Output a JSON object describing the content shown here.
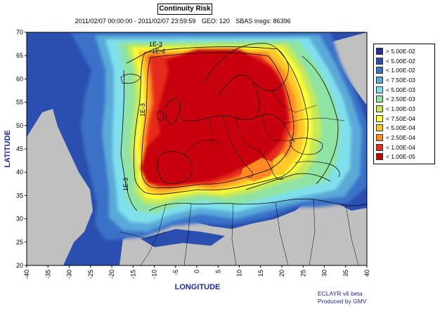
{
  "title": "Continuity Risk",
  "subtitle": {
    "period": "2011/02/07 00:00:00 - 2011/02/07 23:59:59",
    "geo": "GEO: 120",
    "msgs": "SBAS msgs: 86396"
  },
  "axes": {
    "x_title": "LONGITUDE",
    "y_title": "LATITUDE",
    "x_ticks": [
      "-40",
      "-35",
      "-30",
      "-25",
      "-20",
      "-15",
      "-10",
      "-5",
      "0",
      "5",
      "10",
      "15",
      "20",
      "25",
      "30",
      "35",
      "40"
    ],
    "y_ticks": [
      "20",
      "25",
      "30",
      "35",
      "40",
      "45",
      "50",
      "55",
      "60",
      "65",
      "70"
    ],
    "lon_range": [
      -40,
      40
    ],
    "lat_range": [
      20,
      70
    ]
  },
  "contour_labels": [
    "1E-3",
    "1E-4",
    "1E-3",
    "1E-3"
  ],
  "legend": [
    {
      "label": "> 5.00E-02",
      "color": "#1f2f9a"
    },
    {
      "label": "< 5.00E-02",
      "color": "#2a4fb0"
    },
    {
      "label": "< 1.00E-02",
      "color": "#3a72c8"
    },
    {
      "label": "< 7.50E-03",
      "color": "#5aaad8"
    },
    {
      "label": "< 5.00E-03",
      "color": "#7fe0ec"
    },
    {
      "label": "< 2.50E-03",
      "color": "#8fe3a3"
    },
    {
      "label": "< 1.00E-03",
      "color": "#c8e85a"
    },
    {
      "label": "< 7.50E-04",
      "color": "#ffff33"
    },
    {
      "label": "< 5.00E-04",
      "color": "#ffc82a"
    },
    {
      "label": "< 2.50E-04",
      "color": "#ff8a22"
    },
    {
      "label": "< 1.00E-04",
      "color": "#e62b1c"
    },
    {
      "label": "< 1.00E-05",
      "color": "#c8000a"
    }
  ],
  "credits": {
    "software": "ECLAYR v6 beta",
    "producer": "Produced by GMV"
  },
  "colors": {
    "land_gray": "#c0c0c0",
    "axis_text": "#1f2aa6"
  }
}
